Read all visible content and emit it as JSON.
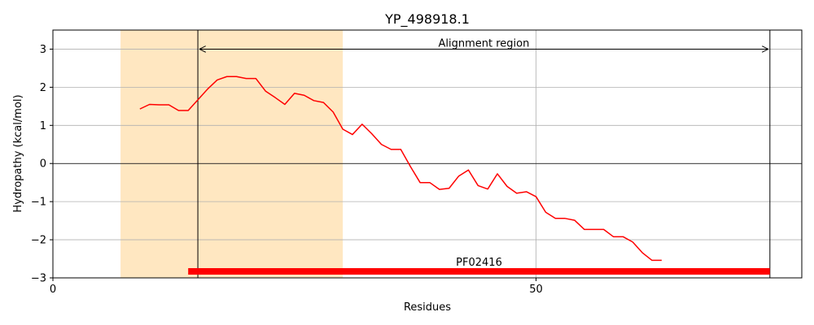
{
  "chart_data": {
    "type": "line",
    "title": "YP_498918.1",
    "xlabel": "Residues",
    "ylabel": "Hydropathy (kcal/mol)",
    "xlim": [
      0,
      77.5
    ],
    "ylim": [
      -3,
      3.5
    ],
    "x_ticks": [
      0,
      50
    ],
    "x_tick_labels": [
      "0",
      "50"
    ],
    "y_ticks": [
      -3,
      -2,
      -1,
      0,
      1,
      2,
      3
    ],
    "y_tick_labels": [
      "−3",
      "−2",
      "−1",
      "0",
      "1",
      "2",
      "3"
    ],
    "grid": true,
    "series": [
      {
        "color": "#ff0000",
        "x": [
          9,
          10,
          11,
          12,
          13,
          14,
          15,
          16,
          17,
          18,
          19,
          20,
          21,
          22,
          23,
          24,
          25,
          26,
          27,
          28,
          29,
          30,
          31,
          32,
          33,
          34,
          35,
          36,
          37,
          38,
          39,
          40,
          41,
          42,
          43,
          44,
          45,
          46,
          47,
          48,
          49,
          50,
          51,
          52,
          53,
          54,
          55,
          56,
          57,
          58,
          59,
          60,
          61,
          62,
          63
        ],
        "y": [
          1.43,
          1.55,
          1.54,
          1.54,
          1.39,
          1.39,
          1.67,
          1.95,
          2.19,
          2.28,
          2.28,
          2.23,
          2.23,
          1.9,
          1.73,
          1.55,
          1.84,
          1.79,
          1.65,
          1.6,
          1.35,
          0.9,
          0.76,
          1.03,
          0.78,
          0.5,
          0.37,
          0.37,
          -0.08,
          -0.5,
          -0.5,
          -0.68,
          -0.65,
          -0.33,
          -0.17,
          -0.58,
          -0.67,
          -0.27,
          -0.6,
          -0.78,
          -0.74,
          -0.87,
          -1.28,
          -1.44,
          -1.44,
          -1.49,
          -1.73,
          -1.73,
          -1.73,
          -1.92,
          -1.92,
          -2.06,
          -2.34,
          -2.54,
          -2.54
        ]
      }
    ],
    "shaded_region": {
      "x_start": 7,
      "x_end": 30,
      "color": "#ffe7c1"
    },
    "alignment_region": {
      "x_start": 15,
      "x_end": 74.2,
      "label": "Alignment region",
      "y": 3.0
    },
    "domain_bar": {
      "x_start": 14,
      "x_end": 74.2,
      "y": -2.83,
      "label": "PF02416",
      "color": "#ff0000"
    }
  }
}
